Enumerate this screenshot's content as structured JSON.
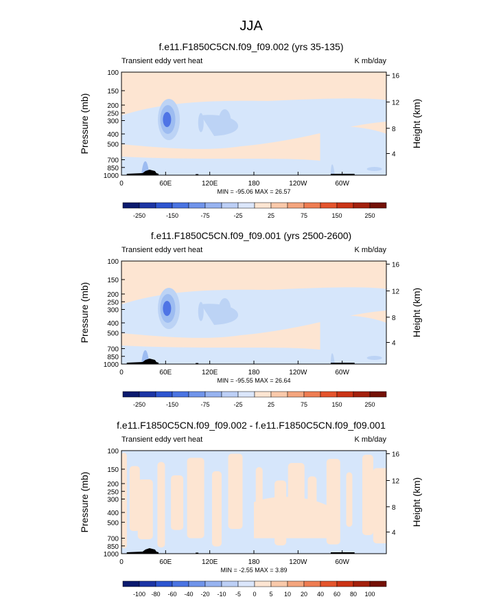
{
  "figure": {
    "title": "JJA"
  },
  "colors": {
    "pos_light": "#fde5d2",
    "neg_1": "#d6e6fb",
    "neg_2": "#bcd3f5",
    "neg_3": "#9dbcf1",
    "neg_4": "#7a9cec",
    "neg_5": "#4f74e5",
    "land": "#000000"
  },
  "chart_data": [
    {
      "type": "heatmap",
      "title": "f.e11.F1850C5CN.f09_f09.002 (yrs 35-135)",
      "left_label": "Transient eddy vert heat",
      "right_label": "K mb/day",
      "ylabel": "Pressure (mb)",
      "ylabel_right": "Height (km)",
      "x_ticks": [
        "0",
        "60E",
        "120E",
        "180",
        "120W",
        "60W"
      ],
      "y_ticks": [
        "100",
        "150",
        "200",
        "250",
        "300",
        "400",
        "500",
        "700",
        "850",
        "1000"
      ],
      "y_ticks_right": [
        "16",
        "12",
        "8",
        "4"
      ],
      "stats": "MIN = -95.06  MAX = 26.57",
      "colorbar_labels": [
        "-250",
        "-150",
        "-75",
        "-25",
        "25",
        "75",
        "150",
        "250"
      ],
      "colorbar_colors": [
        "#0b1a6e",
        "#1c35a5",
        "#2d55d0",
        "#4a74e2",
        "#7094ea",
        "#97b3f0",
        "#bccff6",
        "#dbe6fb",
        "#fde5d2",
        "#f9c9aa",
        "#f4a57e",
        "#ee7d52",
        "#e4542c",
        "#cb3416",
        "#a3200c",
        "#741106"
      ]
    },
    {
      "type": "heatmap",
      "title": "f.e11.F1850C5CN.f09_f09.001 (yrs 2500-2600)",
      "left_label": "Transient eddy vert heat",
      "right_label": "K mb/day",
      "ylabel": "Pressure (mb)",
      "ylabel_right": "Height (km)",
      "x_ticks": [
        "0",
        "60E",
        "120E",
        "180",
        "120W",
        "60W"
      ],
      "y_ticks": [
        "100",
        "150",
        "200",
        "250",
        "300",
        "400",
        "500",
        "700",
        "850",
        "1000"
      ],
      "y_ticks_right": [
        "16",
        "12",
        "8",
        "4"
      ],
      "stats": "MIN = -95.55  MAX = 26.64",
      "colorbar_labels": [
        "-250",
        "-150",
        "-75",
        "-25",
        "25",
        "75",
        "150",
        "250"
      ],
      "colorbar_colors": [
        "#0b1a6e",
        "#1c35a5",
        "#2d55d0",
        "#4a74e2",
        "#7094ea",
        "#97b3f0",
        "#bccff6",
        "#dbe6fb",
        "#fde5d2",
        "#f9c9aa",
        "#f4a57e",
        "#ee7d52",
        "#e4542c",
        "#cb3416",
        "#a3200c",
        "#741106"
      ]
    },
    {
      "type": "heatmap",
      "title": "f.e11.F1850C5CN.f09_f09.002 - f.e11.F1850C5CN.f09_f09.001",
      "left_label": "Transient eddy vert heat",
      "right_label": "K mb/day",
      "ylabel": "Pressure (mb)",
      "ylabel_right": "Height (km)",
      "x_ticks": [
        "0",
        "60E",
        "120E",
        "180",
        "120W",
        "60W"
      ],
      "y_ticks": [
        "100",
        "150",
        "200",
        "250",
        "300",
        "400",
        "500",
        "700",
        "850",
        "1000"
      ],
      "y_ticks_right": [
        "16",
        "12",
        "8",
        "4"
      ],
      "stats": "MIN = -2.55  MAX =  3.89",
      "colorbar_labels": [
        "-100",
        "-80",
        "-60",
        "-40",
        "-20",
        "-10",
        "-5",
        "0",
        "5",
        "10",
        "20",
        "40",
        "60",
        "80",
        "100"
      ],
      "colorbar_colors": [
        "#0b1a6e",
        "#1c35a5",
        "#2d55d0",
        "#4a74e2",
        "#7094ea",
        "#97b3f0",
        "#bccff6",
        "#dbe6fb",
        "#fde5d2",
        "#f9c9aa",
        "#f4a57e",
        "#ee7d52",
        "#e4542c",
        "#cb3416",
        "#a3200c",
        "#741106"
      ]
    }
  ]
}
